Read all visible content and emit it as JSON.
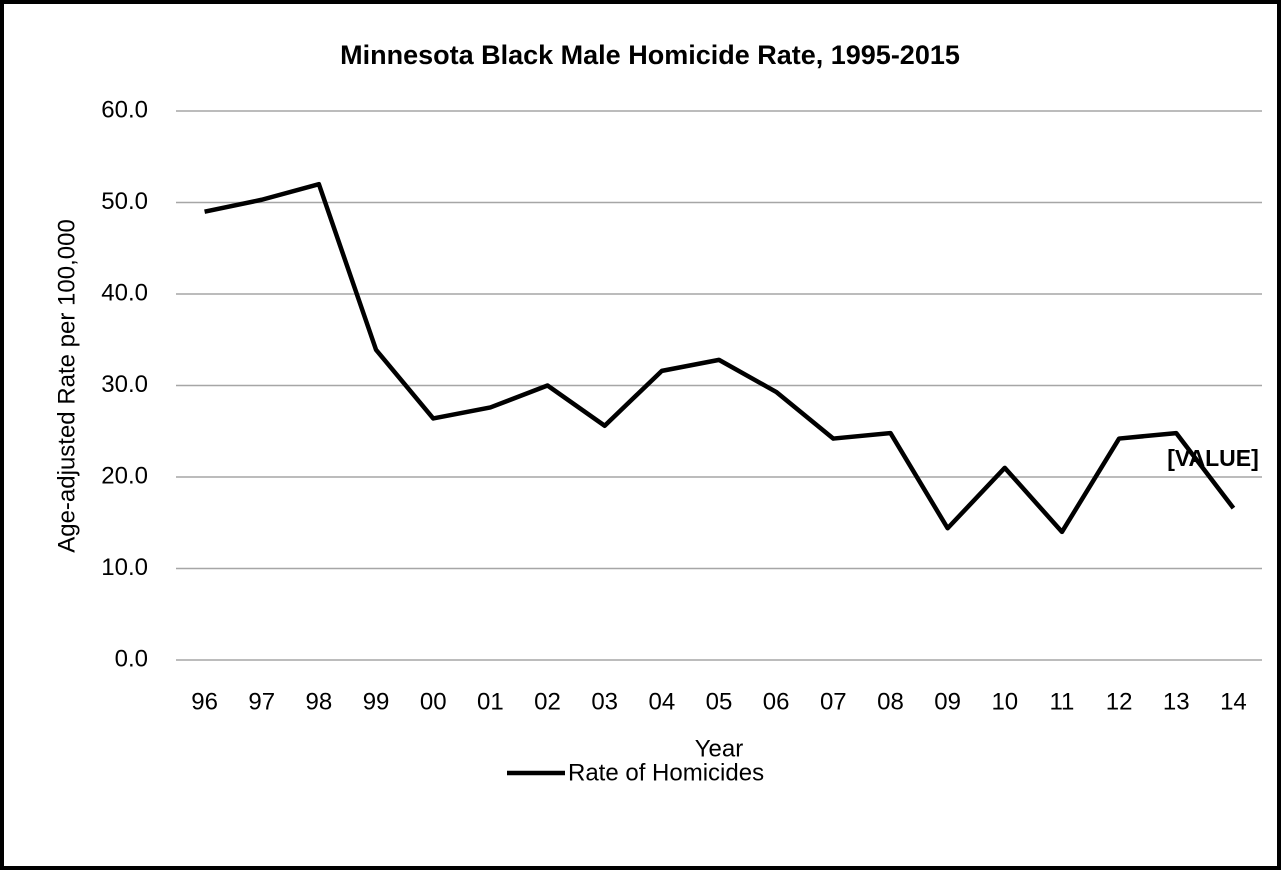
{
  "chart_data": {
    "type": "line",
    "title": "Minnesota Black Male Homicide Rate, 1995-2015",
    "x_label": "Year",
    "y_label": "Age-adjusted Rate per 100,000",
    "annotation": "[VALUE]",
    "categories": [
      "96",
      "97",
      "98",
      "99",
      "00",
      "01",
      "02",
      "03",
      "04",
      "05",
      "06",
      "07",
      "08",
      "09",
      "10",
      "11",
      "12",
      "13",
      "14"
    ],
    "series": [
      {
        "name": "Rate of Homicides",
        "color": "#000000",
        "values": [
          49.0,
          50.3,
          52.0,
          33.9,
          26.4,
          27.6,
          30.0,
          25.6,
          31.6,
          32.8,
          29.3,
          24.2,
          24.8,
          14.4,
          21.0,
          14.0,
          24.2,
          24.8,
          16.6
        ]
      }
    ],
    "ylim": [
      0,
      60
    ],
    "yticks": [
      {
        "value": 0,
        "label": "0.0"
      },
      {
        "value": 10,
        "label": "10.0"
      },
      {
        "value": 20,
        "label": "20.0"
      },
      {
        "value": 30,
        "label": "30.0"
      },
      {
        "value": 40,
        "label": "40.0"
      },
      {
        "value": 50,
        "label": "50.0"
      },
      {
        "value": 60,
        "label": "60.0"
      }
    ],
    "grid": true,
    "legend": "bottom"
  }
}
